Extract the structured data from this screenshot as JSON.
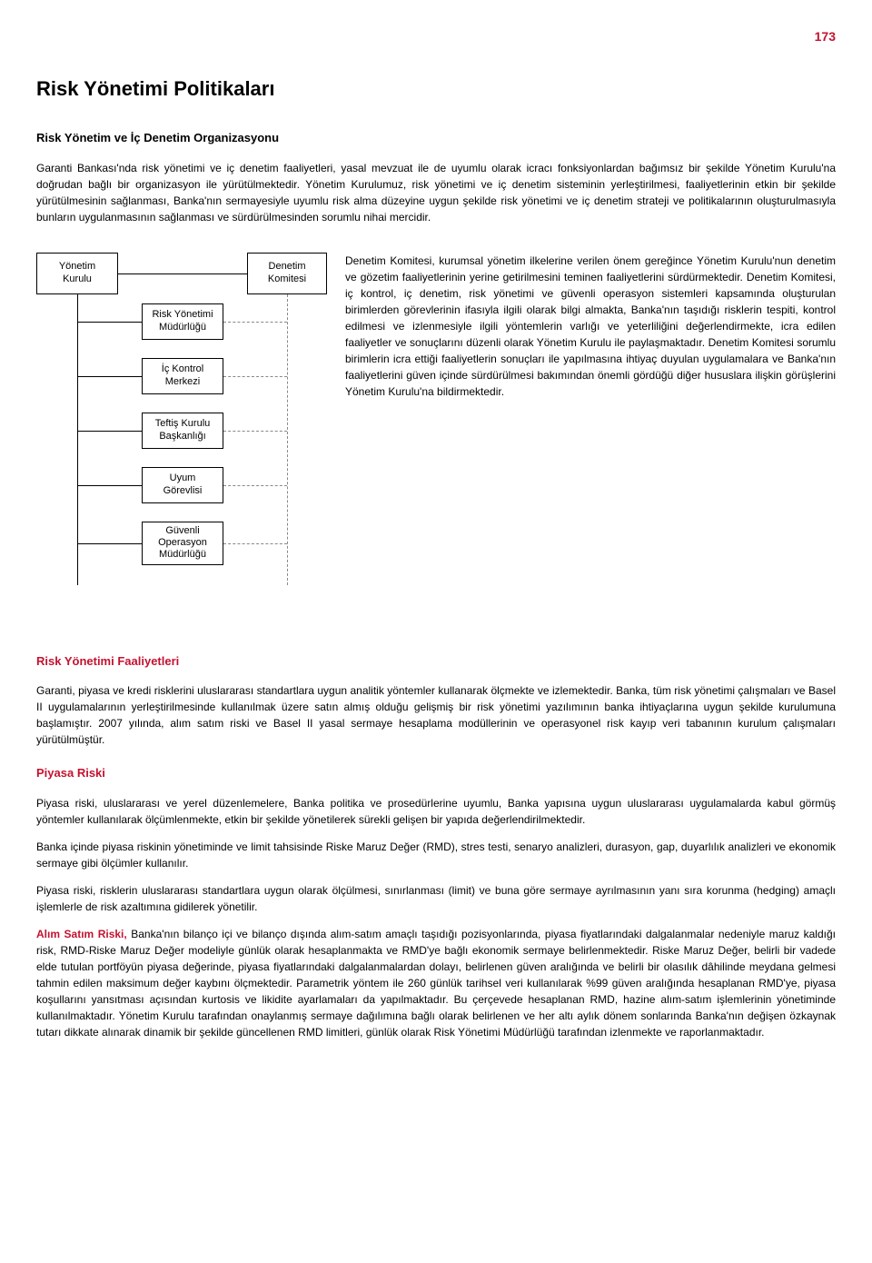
{
  "colors": {
    "accent": "#c41230",
    "text": "#000000",
    "background": "#ffffff",
    "dashed_line": "#888888"
  },
  "page_number": "173",
  "title": "Risk Yönetimi Politikaları",
  "intro_heading": "Risk Yönetim ve İç Denetim Organizasyonu",
  "intro_para": "Garanti Bankası'nda risk yönetimi ve iç denetim faaliyetleri, yasal mevzuat ile de uyumlu olarak icracı fonksiyonlardan bağımsız bir şekilde Yönetim Kurulu'na doğrudan bağlı bir organizasyon ile yürütülmektedir. Yönetim Kurulumuz, risk yönetimi ve iç denetim sisteminin yerleştirilmesi, faaliyetlerinin etkin bir şekilde yürütülmesinin sağlanması, Banka'nın sermayesiyle uyumlu risk alma düzeyine uygun şekilde risk yönetimi ve iç denetim strateji ve politikalarının oluşturulmasıyla bunların uygulanmasının sağlanması ve sürdürülmesinden sorumlu nihai mercidir.",
  "org_chart": {
    "nodes": {
      "yonetim_kurulu": "Yönetim\nKurulu",
      "denetim_komitesi": "Denetim\nKomitesi",
      "risk_yonetimi": "Risk Yönetimi\nMüdürlüğü",
      "ic_kontrol": "İç Kontrol\nMerkezi",
      "teftis_kurulu": "Teftiş Kurulu\nBaşkanlığı",
      "uyum_gorevlisi": "Uyum\nGörevlisi",
      "guvenli_operasyon": "Güvenli\nOperasyon\nMüdürlüğü"
    }
  },
  "komite_para": "Denetim Komitesi, kurumsal yönetim ilkelerine verilen önem gereğince Yönetim Kurulu'nun denetim ve gözetim faaliyetlerinin yerine getirilmesini teminen faaliyetlerini sürdürmektedir. Denetim Komitesi, iç kontrol, iç denetim, risk yönetimi ve güvenli operasyon sistemleri kapsamında oluşturulan birimlerden görevlerinin ifasıyla ilgili olarak bilgi almakta, Banka'nın taşıdığı risklerin tespiti, kontrol edilmesi ve izlenmesiyle ilgili yöntemlerin varlığı ve yeterliliğini değerlendirmekte, icra edilen faaliyetler ve sonuçlarını düzenli olarak Yönetim Kurulu ile paylaşmaktadır. Denetim Komitesi sorumlu birimlerin icra ettiği faaliyetlerin sonuçları ile yapılmasına ihtiyaç duyulan uygulamalara ve Banka'nın faaliyetlerini güven içinde sürdürülmesi bakımından önemli gördüğü diğer hususlara ilişkin görüşlerini Yönetim Kurulu'na bildirmektedir.",
  "faaliyetler": {
    "heading": "Risk Yönetimi Faaliyetleri",
    "para": "Garanti, piyasa ve kredi risklerini uluslararası standartlara uygun analitik yöntemler kullanarak ölçmekte ve izlemektedir. Banka, tüm risk yönetimi çalışmaları ve Basel II uygulamalarının yerleştirilmesinde kullanılmak üzere satın almış olduğu gelişmiş bir risk yönetimi yazılımının banka ihtiyaçlarına uygun şekilde kurulumuna başlamıştır. 2007 yılında, alım satım riski ve Basel II yasal sermaye hesaplama modüllerinin ve operasyonel risk kayıp veri tabanının kurulum çalışmaları yürütülmüştür."
  },
  "piyasa": {
    "heading": "Piyasa Riski",
    "p1": "Piyasa riski, uluslararası ve yerel düzenlemelere, Banka politika ve prosedürlerine uyumlu, Banka yapısına uygun uluslararası uygulamalarda kabul görmüş yöntemler kullanılarak ölçümlenmekte, etkin bir şekilde yönetilerek sürekli gelişen bir yapıda değerlendirilmektedir.",
    "p2": "Banka içinde piyasa riskinin yönetiminde ve limit tahsisinde Riske Maruz Değer (RMD), stres testi, senaryo analizleri, durasyon, gap, duyarlılık analizleri ve ekonomik sermaye gibi ölçümler kullanılır.",
    "p3": "Piyasa riski, risklerin uluslararası standartlara uygun olarak ölçülmesi, sınırlanması (limit) ve buna göre sermaye ayrılmasının yanı sıra korunma (hedging) amaçlı işlemlerle de risk azaltımına gidilerek yönetilir."
  },
  "alim": {
    "lead": "Alım Satım Riski,",
    "text": " Banka'nın bilanço içi ve bilanço dışında alım-satım amaçlı taşıdığı pozisyonlarında, piyasa fiyatlarındaki dalgalanmalar nedeniyle maruz kaldığı risk, RMD-Riske Maruz Değer modeliyle günlük olarak hesaplanmakta ve RMD'ye bağlı ekonomik sermaye belirlenmektedir. Riske Maruz Değer, belirli bir vadede elde tutulan portföyün piyasa değerinde, piyasa fiyatlarındaki dalgalanmalardan dolayı, belirlenen güven aralığında ve belirli bir olasılık dâhilinde meydana gelmesi tahmin edilen maksimum değer kaybını ölçmektedir. Parametrik yöntem ile 260 günlük tarihsel veri kullanılarak %99 güven aralığında hesaplanan RMD'ye, piyasa koşullarını yansıtması açısından kurtosis ve likidite ayarlamaları da yapılmaktadır. Bu çerçevede hesaplanan RMD, hazine alım-satım işlemlerinin yönetiminde kullanılmaktadır. Yönetim Kurulu tarafından onaylanmış sermaye dağılımına bağlı olarak belirlenen ve her altı aylık dönem sonlarında Banka'nın değişen özkaynak tutarı dikkate alınarak dinamik bir şekilde güncellenen RMD limitleri, günlük olarak Risk Yönetimi Müdürlüğü tarafından izlenmekte ve raporlanmaktadır."
  }
}
